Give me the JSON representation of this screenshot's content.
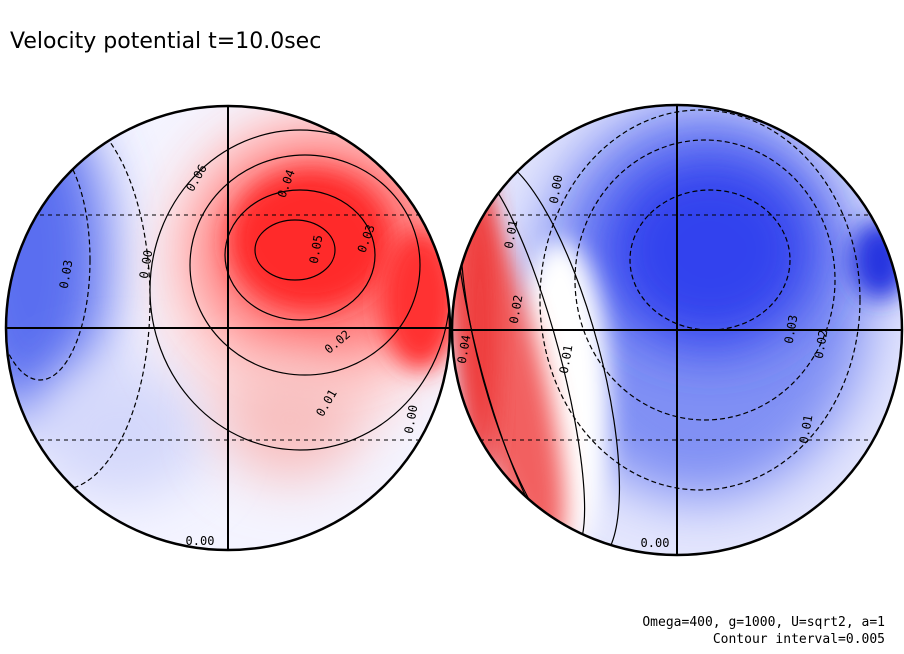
{
  "header": {
    "title": "Velocity potential t=10.0sec"
  },
  "panels": [
    {
      "contour_labels": [
        "0.03",
        "0.00",
        "0.06",
        "0.04",
        "0.05",
        "0.03",
        "0.02",
        "0.01",
        "0.00",
        "0.00"
      ]
    },
    {
      "contour_labels": [
        "0.00",
        "0.01",
        "0.04",
        "0.02",
        "0.01",
        "0.03",
        "0.02",
        "0.01",
        "0.00"
      ]
    }
  ],
  "footer": {
    "lines": [
      "Omega=400, g=1000, U=sqrt2, a=1",
      "Contour interval=0.005"
    ]
  }
}
